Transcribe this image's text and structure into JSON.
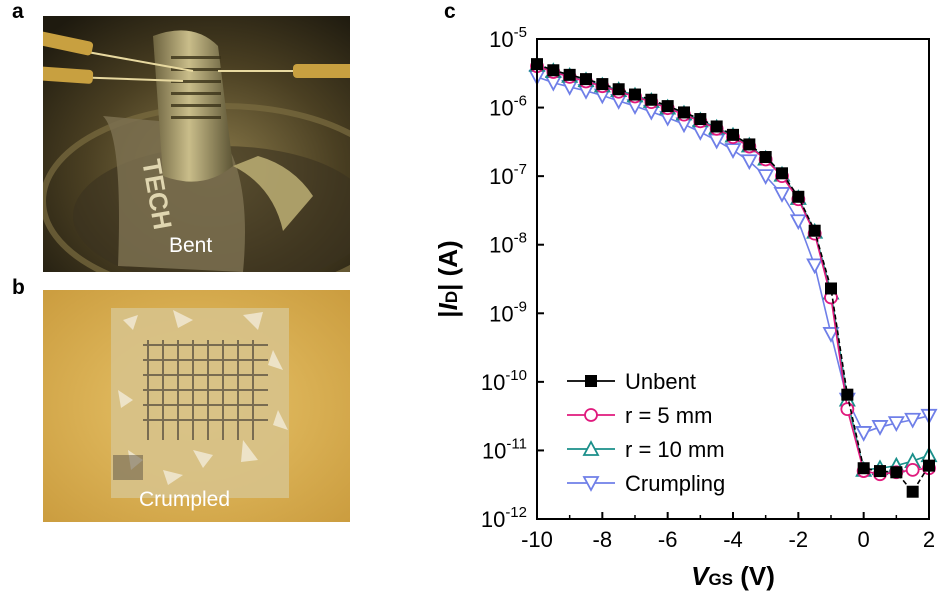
{
  "panels": {
    "a": {
      "letter": "a",
      "caption": "Bent",
      "logo_text": "TECH"
    },
    "b": {
      "letter": "b",
      "caption": "Crumpled"
    },
    "c": {
      "letter": "c"
    }
  },
  "colors": {
    "unbent": "#000000",
    "r5": "#e0197d",
    "r10": "#1a8f8a",
    "crumpling": "#6f7fe8"
  },
  "chart_data": {
    "type": "line",
    "title": "",
    "xlabel_italic": "V",
    "xlabel_sub": "GS",
    "xlabel_unit": " (V)",
    "ylabel_pre": "|",
    "ylabel_italic": "I",
    "ylabel_sub": "D",
    "ylabel_post": "| (A)",
    "xlim": [
      -10,
      2
    ],
    "ylim": [
      1e-12,
      1e-05
    ],
    "yscale": "log",
    "legend_position": "bottom-left",
    "x_ticks": [
      -10,
      -8,
      -6,
      -4,
      -2,
      0,
      2
    ],
    "x_tick_labels": [
      "-10",
      "-8",
      "-6",
      "-4",
      "-2",
      "0",
      "2"
    ],
    "y_ticks": [
      {
        "exp": -5,
        "base": "10",
        "sup": "-5"
      },
      {
        "exp": -6,
        "base": "10",
        "sup": "-6"
      },
      {
        "exp": -7,
        "base": "10",
        "sup": "-7"
      },
      {
        "exp": -8,
        "base": "10",
        "sup": "-8"
      },
      {
        "exp": -9,
        "base": "10",
        "sup": "-9"
      },
      {
        "exp": -10,
        "base": "10",
        "sup": "-10"
      },
      {
        "exp": -11,
        "base": "10",
        "sup": "-11"
      },
      {
        "exp": -12,
        "base": "10",
        "sup": "-12"
      }
    ],
    "x": [
      -10,
      -9.5,
      -9,
      -8.5,
      -8,
      -7.5,
      -7,
      -6.5,
      -6,
      -5.5,
      -5,
      -4.5,
      -4,
      -3.5,
      -3,
      -2.5,
      -2,
      -1.5,
      -1,
      -0.5,
      0,
      0.5,
      1,
      1.5,
      2
    ],
    "series": [
      {
        "name": "Unbent",
        "marker": "square",
        "color_key": "unbent",
        "dashed": true,
        "values": [
          4.3e-06,
          3.5e-06,
          3e-06,
          2.6e-06,
          2.2e-06,
          1.85e-06,
          1.55e-06,
          1.3e-06,
          1.05e-06,
          8.5e-07,
          6.8e-07,
          5.3e-07,
          4e-07,
          2.9e-07,
          1.9e-07,
          1.1e-07,
          5e-08,
          1.6e-08,
          2.3e-09,
          6.5e-11,
          5.5e-12,
          5e-12,
          4.8e-12,
          2.5e-12,
          6e-12
        ]
      },
      {
        "name": "r = 5 mm",
        "marker": "circle",
        "color_key": "r5",
        "dashed": false,
        "values": [
          4e-06,
          3.3e-06,
          2.8e-06,
          2.4e-06,
          2.05e-06,
          1.7e-06,
          1.45e-06,
          1.2e-06,
          9.8e-07,
          7.9e-07,
          6.3e-07,
          4.9e-07,
          3.7e-07,
          2.7e-07,
          1.75e-07,
          1e-07,
          4.6e-08,
          1.45e-08,
          1.7e-09,
          4e-11,
          5e-12,
          4.5e-12,
          4.8e-12,
          5.2e-12,
          5.5e-12
        ]
      },
      {
        "name": "r = 10 mm",
        "marker": "triangle-up",
        "color_key": "r10",
        "dashed": false,
        "values": [
          4.2e-06,
          3.4e-06,
          2.9e-06,
          2.5e-06,
          2.1e-06,
          1.8e-06,
          1.5e-06,
          1.25e-06,
          1e-06,
          8.2e-07,
          6.5e-07,
          5.1e-07,
          3.9e-07,
          2.8e-07,
          1.8e-07,
          1.05e-07,
          4.8e-08,
          1.55e-08,
          2e-09,
          5.5e-11,
          5.2e-12,
          5.5e-12,
          6e-12,
          7e-12,
          8.5e-12
        ]
      },
      {
        "name": "Crumpling",
        "marker": "triangle-down",
        "color_key": "crumpling",
        "dashed": false,
        "values": [
          2.8e-06,
          2.3e-06,
          2e-06,
          1.75e-06,
          1.5e-06,
          1.25e-06,
          1.05e-06,
          8.7e-07,
          7.1e-07,
          5.7e-07,
          4.4e-07,
          3.3e-07,
          2.4e-07,
          1.65e-07,
          1e-07,
          5.5e-08,
          2.2e-08,
          5e-09,
          5e-10,
          5.5e-11,
          1.8e-11,
          2.2e-11,
          2.5e-11,
          2.8e-11,
          3.2e-11
        ]
      }
    ]
  }
}
